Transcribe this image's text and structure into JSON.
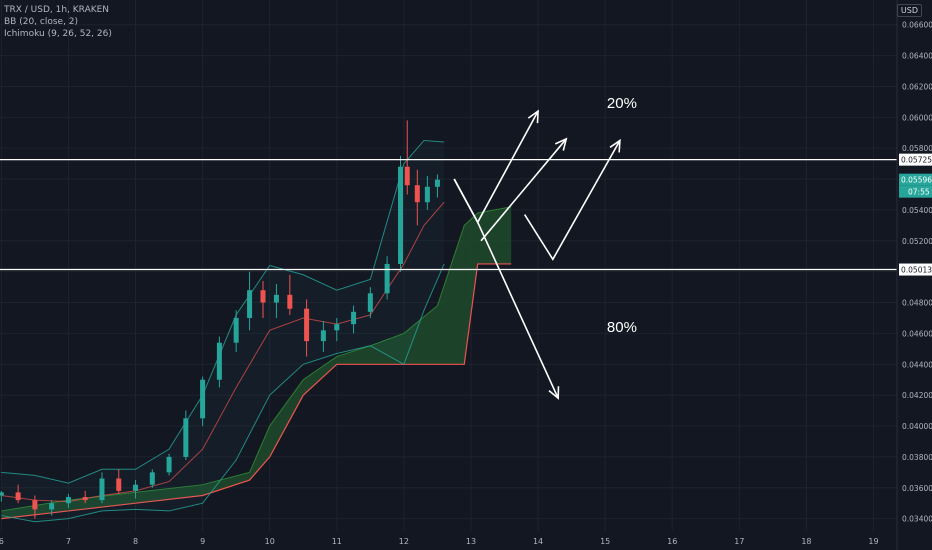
{
  "legend": {
    "symbol": "TRX / USD, 1h, KRAKEN",
    "bb": "BB (20, close, 2)",
    "ichimoku": "Ichimoku (9, 26, 52, 26)"
  },
  "currency": "USD",
  "colors": {
    "background": "#131722",
    "grid": "#1e222d",
    "text": "#b2b5be",
    "up": "#26a69a",
    "down": "#ef5350",
    "bb_band": "#26a69a",
    "bb_basis": "#ef5350",
    "cloud_line": "#ef5350",
    "cloud_fill": "#1f4a2c",
    "white": "#ffffff",
    "price_tag": "#26a69a"
  },
  "chart_data": {
    "type": "candlestick",
    "title": "TRX / USD, 1h, KRAKEN",
    "x_ticks": [
      "6",
      "7",
      "8",
      "9",
      "10",
      "11",
      "12",
      "13",
      "14",
      "15",
      "16",
      "17",
      "18",
      "19"
    ],
    "y_ticks": [
      "0.066000",
      "0.064000",
      "0.062000",
      "0.060000",
      "0.058000",
      "0.056000",
      "0.054000",
      "0.052000",
      "0.050000",
      "0.048000",
      "0.046000",
      "0.044000",
      "0.042000",
      "0.040000",
      "0.038000",
      "0.036000",
      "0.034000"
    ],
    "ylim": [
      0.0332,
      0.0676
    ],
    "xlim": [
      5.98,
      19.35
    ],
    "grid": true,
    "price_tags": [
      {
        "value": 0.057258,
        "label": "0.057258",
        "style": "line"
      },
      {
        "value": 0.05596,
        "label": "0.055960",
        "style": "current",
        "countdown": "07:55"
      },
      {
        "value": 0.050139,
        "label": "0.050139",
        "style": "line"
      }
    ],
    "candles_approx": [
      [
        6.0,
        0.0355,
        0.0358,
        0.0351,
        0.0357
      ],
      [
        6.25,
        0.0357,
        0.0362,
        0.035,
        0.0352
      ],
      [
        6.5,
        0.0352,
        0.0355,
        0.034,
        0.0346
      ],
      [
        6.75,
        0.0346,
        0.0352,
        0.0342,
        0.035
      ],
      [
        7.0,
        0.035,
        0.0356,
        0.0347,
        0.0354
      ],
      [
        7.25,
        0.0354,
        0.0358,
        0.035,
        0.0352
      ],
      [
        7.5,
        0.0352,
        0.037,
        0.035,
        0.0366
      ],
      [
        7.75,
        0.0366,
        0.0372,
        0.0356,
        0.0358
      ],
      [
        8.0,
        0.0358,
        0.0365,
        0.0353,
        0.0362
      ],
      [
        8.25,
        0.0362,
        0.0372,
        0.036,
        0.037
      ],
      [
        8.5,
        0.037,
        0.0382,
        0.0368,
        0.038
      ],
      [
        8.75,
        0.038,
        0.041,
        0.0378,
        0.0405
      ],
      [
        9.0,
        0.0405,
        0.0432,
        0.04,
        0.043
      ],
      [
        9.25,
        0.043,
        0.0458,
        0.0425,
        0.0454
      ],
      [
        9.5,
        0.0454,
        0.0475,
        0.0448,
        0.047
      ],
      [
        9.7,
        0.047,
        0.05,
        0.0462,
        0.0488
      ],
      [
        9.9,
        0.0488,
        0.0494,
        0.047,
        0.048
      ],
      [
        10.1,
        0.048,
        0.0492,
        0.047,
        0.0485
      ],
      [
        10.3,
        0.0485,
        0.0498,
        0.0472,
        0.0476
      ],
      [
        10.55,
        0.0476,
        0.0482,
        0.0445,
        0.0455
      ],
      [
        10.8,
        0.0455,
        0.0468,
        0.0448,
        0.0462
      ],
      [
        11.0,
        0.0462,
        0.047,
        0.0455,
        0.0466
      ],
      [
        11.25,
        0.0466,
        0.0478,
        0.046,
        0.0474
      ],
      [
        11.5,
        0.0474,
        0.049,
        0.047,
        0.0486
      ],
      [
        11.75,
        0.0486,
        0.051,
        0.0482,
        0.0505
      ],
      [
        11.95,
        0.0505,
        0.0575,
        0.05,
        0.0568
      ],
      [
        12.05,
        0.0568,
        0.0598,
        0.055,
        0.0556
      ],
      [
        12.2,
        0.0556,
        0.0566,
        0.053,
        0.0545
      ],
      [
        12.35,
        0.0545,
        0.0562,
        0.054,
        0.0555
      ],
      [
        12.5,
        0.0555,
        0.0563,
        0.0548,
        0.05596
      ]
    ],
    "bollinger_approx": {
      "x": [
        6.0,
        6.5,
        7.0,
        7.5,
        8.0,
        8.5,
        9.0,
        9.5,
        10.0,
        10.5,
        11.0,
        11.5,
        12.0,
        12.3,
        12.6
      ],
      "upper": [
        0.037,
        0.0368,
        0.0363,
        0.0372,
        0.0372,
        0.0385,
        0.042,
        0.0472,
        0.0504,
        0.0498,
        0.0488,
        0.0495,
        0.057,
        0.0585,
        0.0584
      ],
      "basis": [
        0.0355,
        0.0352,
        0.0351,
        0.0355,
        0.0358,
        0.0364,
        0.0385,
        0.0425,
        0.0462,
        0.047,
        0.0466,
        0.0472,
        0.0505,
        0.053,
        0.0545
      ],
      "lower": [
        0.0342,
        0.0338,
        0.034,
        0.0345,
        0.0346,
        0.0345,
        0.035,
        0.0378,
        0.042,
        0.044,
        0.0447,
        0.0452,
        0.044,
        0.0475,
        0.0505
      ]
    },
    "cloud_approx": {
      "x": [
        6.0,
        7.0,
        8.0,
        9.0,
        9.7,
        10.0,
        10.5,
        11.0,
        11.5,
        12.0,
        12.5,
        12.9,
        13.1,
        13.6
      ],
      "span_a": [
        0.0345,
        0.0352,
        0.0357,
        0.0362,
        0.037,
        0.04,
        0.043,
        0.0445,
        0.0452,
        0.046,
        0.0478,
        0.053,
        0.0538,
        0.0542
      ],
      "span_b": [
        0.034,
        0.0345,
        0.035,
        0.0355,
        0.0365,
        0.038,
        0.042,
        0.044,
        0.044,
        0.044,
        0.044,
        0.044,
        0.0505,
        0.0505
      ]
    },
    "annotations": [
      {
        "text": "20%",
        "x": 15.25,
        "y": 0.0606
      },
      {
        "text": "80%",
        "x": 15.25,
        "y": 0.0461
      }
    ],
    "arrows": [
      {
        "from": [
          12.75,
          0.056
        ],
        "via": [
          [
            13.1,
            0.0532
          ]
        ],
        "to": [
          14.0,
          0.0604
        ]
      },
      {
        "from": [
          13.15,
          0.052
        ],
        "via": [],
        "to": [
          14.42,
          0.0586
        ]
      },
      {
        "from": [
          13.8,
          0.0537
        ],
        "via": [
          [
            14.22,
            0.0508
          ]
        ],
        "to": [
          15.22,
          0.0585
        ]
      },
      {
        "from": [
          12.75,
          0.056
        ],
        "via": [
          [
            13.1,
            0.0532
          ]
        ],
        "to": [
          14.3,
          0.0418
        ]
      }
    ]
  }
}
